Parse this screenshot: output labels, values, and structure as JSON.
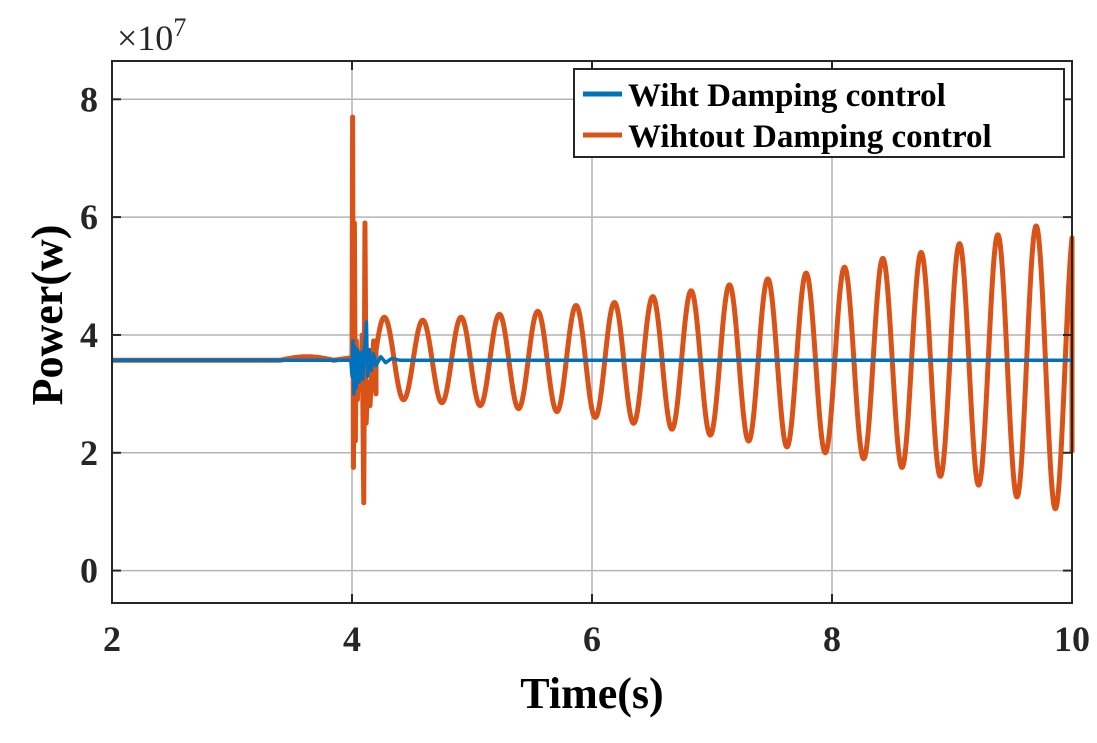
{
  "chart_data": {
    "type": "line",
    "xlabel": "Time(s)",
    "ylabel": "Power(w)",
    "y_exponent_label": {
      "base": "×10",
      "power": "7"
    },
    "xlim": [
      2,
      10
    ],
    "ylim": [
      -0.55,
      8.65
    ],
    "y_scale_factor": 10000000,
    "x_ticks": [
      2,
      4,
      6,
      8,
      10
    ],
    "y_ticks": [
      0,
      2,
      4,
      6,
      8
    ],
    "grid": true,
    "legend_position": "top-right",
    "series": [
      {
        "name": "Wiht Damping control",
        "color": "#0072BD",
        "description_points": {
          "steady_value": 3.57,
          "disturbance_start": 4.0,
          "peak": 4.22,
          "trough": 2.9,
          "settle_time": 4.4
        }
      },
      {
        "name": "Wihtout Damping control",
        "color": "#D95319",
        "description_points": {
          "steady_value": 3.57,
          "spike_max": 7.7,
          "spike_min": 1.15,
          "oscillation_peaks": [
            4.3,
            4.25,
            4.3,
            4.35,
            4.4,
            4.5,
            4.55,
            4.65,
            4.75,
            4.85,
            4.95,
            5.05,
            5.15,
            5.3,
            5.4,
            5.55,
            5.7,
            5.85
          ],
          "oscillation_troughs": [
            2.9,
            2.85,
            2.8,
            2.75,
            2.7,
            2.6,
            2.5,
            2.4,
            2.3,
            2.2,
            2.1,
            2.0,
            1.9,
            1.75,
            1.6,
            1.45,
            1.25,
            1.05
          ],
          "end_value": 2.0
        }
      }
    ]
  }
}
